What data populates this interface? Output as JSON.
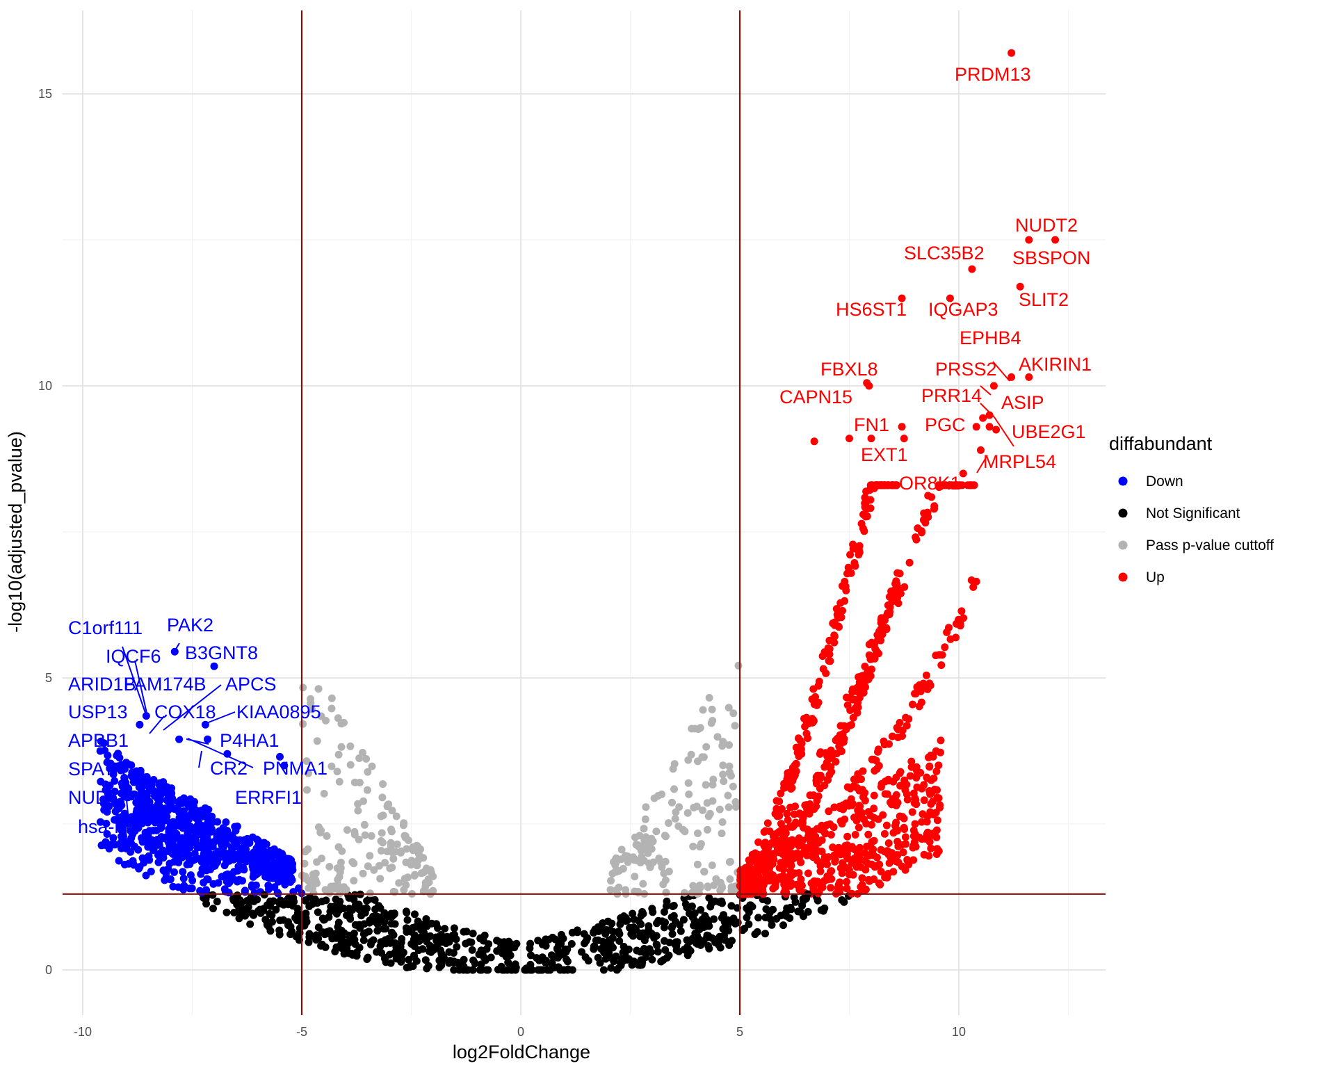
{
  "chart_data": {
    "type": "scatter",
    "title": "",
    "xlabel": "log2FoldChange",
    "ylabel": "-log10(adjusted_pvalue)",
    "xlim": [
      -10.8,
      13.4
    ],
    "ylim": [
      -0.75,
      16.1
    ],
    "x_ticks": [
      -10,
      -5,
      0,
      5,
      10
    ],
    "x_tick_labels": [
      "-10",
      "-5",
      "0",
      "5",
      "10"
    ],
    "y_ticks": [
      0,
      5,
      10,
      15
    ],
    "y_tick_labels": [
      "0",
      "5",
      "10",
      "15"
    ],
    "grid": true,
    "thresholds": {
      "x": [
        -5,
        5
      ],
      "y": 1.3,
      "color": "#7f1010"
    },
    "legend": {
      "title": "diffabundant",
      "placement": "right",
      "entries": [
        {
          "name": "Down",
          "color": "#0000ff"
        },
        {
          "name": "Not Significant",
          "color": "#000000"
        },
        {
          "name": "Pass p-value cuttoff",
          "color": "#b3b3b3"
        },
        {
          "name": "Up",
          "color": "#ff0000"
        }
      ]
    },
    "series": [
      {
        "name": "Up",
        "color": "#ff0000",
        "highlighted_points": [
          {
            "x": 11.2,
            "y": 15.7
          },
          {
            "x": 11.6,
            "y": 12.5
          },
          {
            "x": 12.2,
            "y": 12.5
          },
          {
            "x": 10.3,
            "y": 12.0
          },
          {
            "x": 8.7,
            "y": 11.5
          },
          {
            "x": 9.8,
            "y": 11.5
          },
          {
            "x": 11.4,
            "y": 11.7
          },
          {
            "x": 7.9,
            "y": 10.05
          },
          {
            "x": 7.95,
            "y": 10.0
          },
          {
            "x": 11.2,
            "y": 10.15
          },
          {
            "x": 11.6,
            "y": 10.15
          },
          {
            "x": 10.8,
            "y": 10.0
          },
          {
            "x": 10.55,
            "y": 9.45
          },
          {
            "x": 10.7,
            "y": 9.5
          },
          {
            "x": 10.4,
            "y": 9.3
          },
          {
            "x": 10.7,
            "y": 9.3
          },
          {
            "x": 10.85,
            "y": 9.25
          },
          {
            "x": 10.5,
            "y": 8.9
          },
          {
            "x": 10.1,
            "y": 8.5
          },
          {
            "x": 8.7,
            "y": 9.3
          },
          {
            "x": 8.75,
            "y": 9.1
          },
          {
            "x": 8.0,
            "y": 9.1
          },
          {
            "x": 7.5,
            "y": 9.1
          },
          {
            "x": 6.7,
            "y": 9.05
          },
          {
            "x": 10.4,
            "y": 6.65
          }
        ]
      },
      {
        "name": "Down",
        "color": "#0000ff",
        "highlighted_points": [
          {
            "x": -7.9,
            "y": 5.45
          },
          {
            "x": -7.0,
            "y": 5.2
          },
          {
            "x": -8.55,
            "y": 4.35
          },
          {
            "x": -8.7,
            "y": 4.2
          },
          {
            "x": -7.2,
            "y": 4.2
          },
          {
            "x": -7.8,
            "y": 3.95
          },
          {
            "x": -7.15,
            "y": 3.95
          },
          {
            "x": -6.7,
            "y": 3.7
          },
          {
            "x": -9.3,
            "y": 3.35
          },
          {
            "x": -5.5,
            "y": 3.65
          },
          {
            "x": -5.4,
            "y": 3.5
          },
          {
            "x": -9.4,
            "y": 2.8
          }
        ]
      }
    ],
    "annotations": [
      {
        "text": "PRDM13",
        "color": "#ff0000"
      },
      {
        "text": "NUDT2",
        "color": "#ff0000"
      },
      {
        "text": "SLC35B2",
        "color": "#ff0000"
      },
      {
        "text": "SBSPON",
        "color": "#ff0000"
      },
      {
        "text": "SLIT2",
        "color": "#ff0000"
      },
      {
        "text": "HS6ST1",
        "color": "#ff0000"
      },
      {
        "text": "IQGAP3",
        "color": "#ff0000"
      },
      {
        "text": "EPHB4",
        "color": "#ff0000"
      },
      {
        "text": "FBXL8",
        "color": "#ff0000"
      },
      {
        "text": "PRSS2",
        "color": "#ff0000"
      },
      {
        "text": "AKIRIN1",
        "color": "#ff0000"
      },
      {
        "text": "CAPN15",
        "color": "#ff0000"
      },
      {
        "text": "PRR14",
        "color": "#ff0000"
      },
      {
        "text": "ASIP",
        "color": "#ff0000"
      },
      {
        "text": "FN1",
        "color": "#ff0000"
      },
      {
        "text": "PGC",
        "color": "#ff0000"
      },
      {
        "text": "UBE2G1",
        "color": "#ff0000"
      },
      {
        "text": "EXT1",
        "color": "#ff0000"
      },
      {
        "text": "MRPL54",
        "color": "#ff0000"
      },
      {
        "text": "OR8K1",
        "color": "#ff0000"
      },
      {
        "text": "C1orf111",
        "color": "#0000ff"
      },
      {
        "text": "PAK2",
        "color": "#0000ff"
      },
      {
        "text": "IQCF6",
        "color": "#0000ff"
      },
      {
        "text": "B3GNT8",
        "color": "#0000ff"
      },
      {
        "text": "ARID1B",
        "color": "#0000ff"
      },
      {
        "text": "FAM174B",
        "color": "#0000ff"
      },
      {
        "text": "APCS",
        "color": "#0000ff"
      },
      {
        "text": "USP13",
        "color": "#0000ff"
      },
      {
        "text": "COX18",
        "color": "#0000ff"
      },
      {
        "text": "KIAA0895",
        "color": "#0000ff"
      },
      {
        "text": "APBB1",
        "color": "#0000ff"
      },
      {
        "text": "P4HA1",
        "color": "#0000ff"
      },
      {
        "text": "SPATA",
        "color": "#0000ff"
      },
      {
        "text": "CR2",
        "color": "#0000ff"
      },
      {
        "text": "PNMA1",
        "color": "#0000ff"
      },
      {
        "text": "NUDT",
        "color": "#0000ff"
      },
      {
        "text": "ERRFI1",
        "color": "#0000ff"
      },
      {
        "text": "hsa-mi",
        "color": "#0000ff"
      }
    ]
  }
}
